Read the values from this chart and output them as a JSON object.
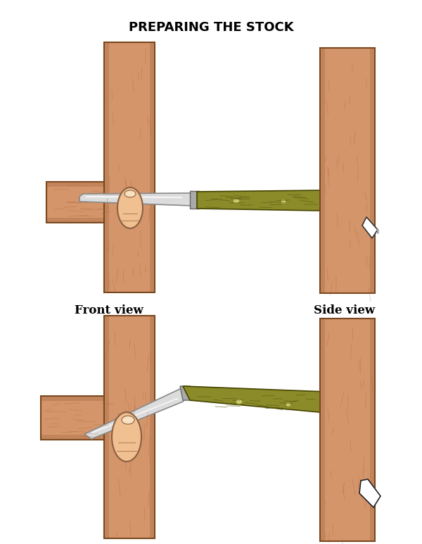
{
  "title": "PREPARING THE STOCK",
  "title_fontsize": 13,
  "label_front_view": "Front view",
  "label_side_view": "Side view",
  "wood_color": "#D4956A",
  "wood_edge": "#7A4820",
  "wood_grain": "#AA6633",
  "knife_blade_color": "#DCDCDC",
  "knife_handle_color": "#8B8B2A",
  "knife_handle_grain": "#5A5A10",
  "skin_color": "#F0C090",
  "skin_edge": "#8B6040",
  "background": "#FFFFFF",
  "label_fontsize": 12
}
